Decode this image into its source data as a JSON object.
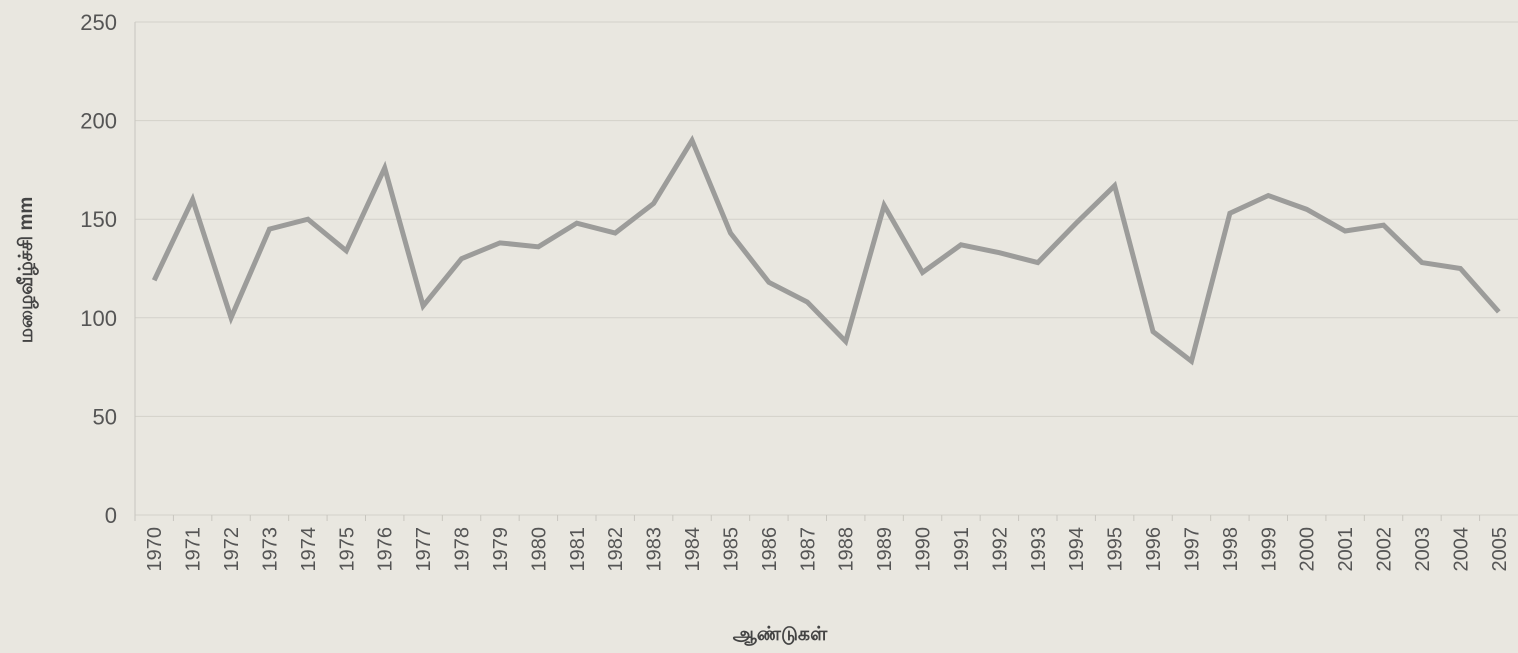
{
  "chart_data": {
    "type": "line",
    "x_label": "ஆண்டுகள்",
    "y_label": "மழைவீழ்ச்சி mm",
    "categories": [
      "1970",
      "1971",
      "1972",
      "1973",
      "1974",
      "1975",
      "1976",
      "1977",
      "1978",
      "1979",
      "1980",
      "1981",
      "1982",
      "1983",
      "1984",
      "1985",
      "1986",
      "1987",
      "1988",
      "1989",
      "1990",
      "1991",
      "1992",
      "1993",
      "1994",
      "1995",
      "1996",
      "1997",
      "1998",
      "1999",
      "2000",
      "2001",
      "2002",
      "2003",
      "2004",
      "2005"
    ],
    "values": [
      119,
      160,
      100,
      145,
      150,
      134,
      176,
      106,
      130,
      138,
      136,
      148,
      143,
      158,
      190,
      143,
      118,
      108,
      88,
      157,
      123,
      137,
      133,
      128,
      148,
      167,
      93,
      78,
      153,
      162,
      155,
      144,
      147,
      128,
      125,
      103
    ],
    "color": "#9c9c9a",
    "ylim": [
      0,
      250
    ],
    "yticks": [
      0,
      50,
      100,
      150,
      200,
      250
    ],
    "grid": true
  }
}
